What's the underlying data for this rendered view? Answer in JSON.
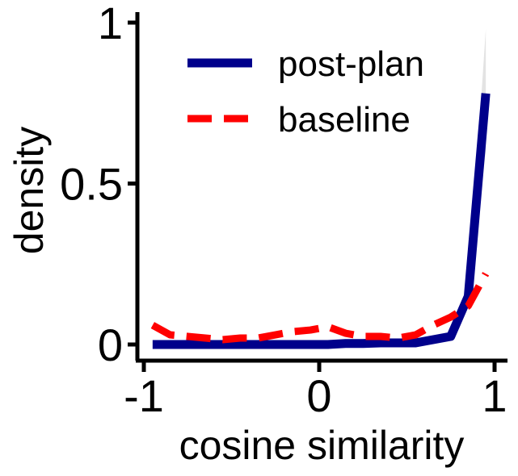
{
  "chart_data": {
    "type": "line",
    "xlabel": "cosine similarity",
    "ylabel": "density",
    "xlim": [
      -1,
      1
    ],
    "ylim": [
      0,
      1
    ],
    "x_ticks": [
      -1,
      0,
      1
    ],
    "x_tick_labels": [
      "-1",
      "0",
      "1"
    ],
    "y_ticks": [
      0,
      0.5,
      1
    ],
    "y_tick_labels": [
      "0",
      "0.5",
      "1"
    ],
    "grid": false,
    "legend_position": "top-right",
    "series": [
      {
        "name": "post-plan",
        "color": "#00008b",
        "style": "solid",
        "x": [
          -0.95,
          -0.85,
          -0.75,
          -0.65,
          -0.55,
          -0.45,
          -0.35,
          -0.25,
          -0.15,
          -0.05,
          0.05,
          0.15,
          0.25,
          0.35,
          0.45,
          0.55,
          0.65,
          0.75,
          0.85,
          0.95
        ],
        "y": [
          0.0,
          0.0,
          0.0,
          0.0,
          0.0,
          0.0,
          0.0,
          0.0,
          0.0,
          0.0,
          0.0,
          0.003,
          0.003,
          0.005,
          0.005,
          0.005,
          0.015,
          0.025,
          0.15,
          0.78
        ],
        "band_upper": [
          0.0,
          0.0,
          0.0,
          0.0,
          0.0,
          0.0,
          0.0,
          0.0,
          0.0,
          0.0,
          0.0,
          0.003,
          0.003,
          0.005,
          0.005,
          0.005,
          0.015,
          0.03,
          0.16,
          0.98
        ],
        "band_lower": [
          0.0,
          0.0,
          0.0,
          0.0,
          0.0,
          0.0,
          0.0,
          0.0,
          0.0,
          0.0,
          0.0,
          0.003,
          0.003,
          0.005,
          0.005,
          0.005,
          0.015,
          0.02,
          0.14,
          0.6
        ]
      },
      {
        "name": "baseline",
        "color": "#ff0000",
        "style": "dashed",
        "x": [
          -0.95,
          -0.85,
          -0.75,
          -0.65,
          -0.55,
          -0.45,
          -0.35,
          -0.25,
          -0.15,
          -0.05,
          0.05,
          0.15,
          0.25,
          0.35,
          0.45,
          0.55,
          0.65,
          0.75,
          0.85,
          0.95
        ],
        "y": [
          0.06,
          0.03,
          0.025,
          0.02,
          0.015,
          0.02,
          0.02,
          0.03,
          0.04,
          0.045,
          0.055,
          0.035,
          0.025,
          0.025,
          0.02,
          0.03,
          0.06,
          0.085,
          0.12,
          0.22
        ]
      }
    ]
  }
}
